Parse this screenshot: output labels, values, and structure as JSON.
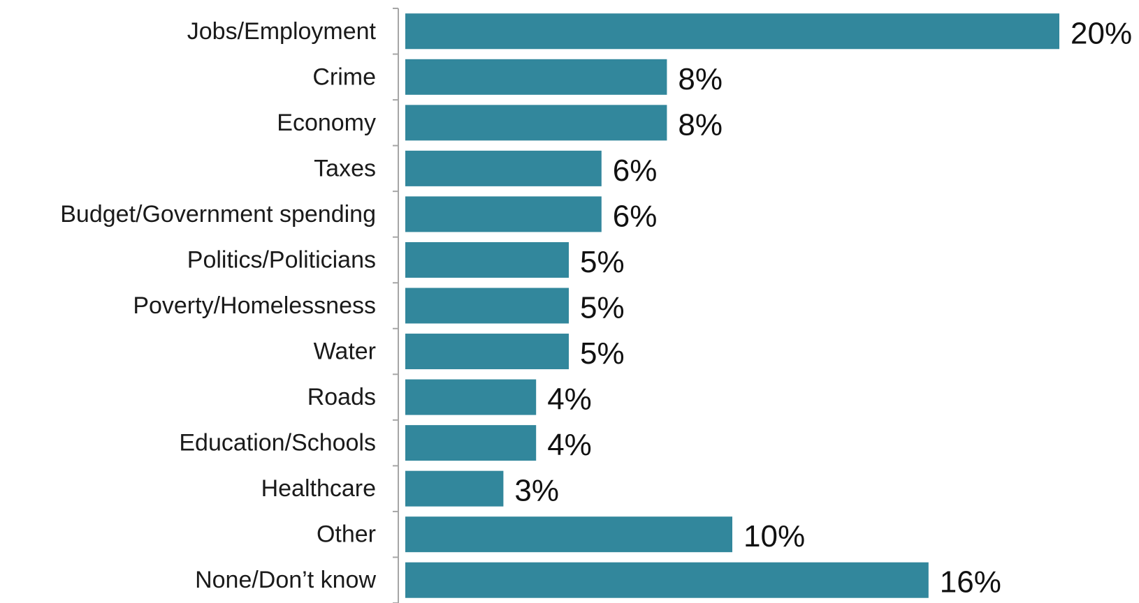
{
  "chart_data": {
    "type": "bar",
    "orientation": "horizontal",
    "categories": [
      "Jobs/Employment",
      "Crime",
      "Economy",
      "Taxes",
      "Budget/Government spending",
      "Politics/Politicians",
      "Poverty/Homelessness",
      "Water",
      "Roads",
      "Education/Schools",
      "Healthcare",
      "Other",
      "None/Don’t know"
    ],
    "values": [
      20,
      8,
      8,
      6,
      6,
      5,
      5,
      5,
      4,
      4,
      3,
      10,
      16
    ],
    "value_labels": [
      "20%",
      "8%",
      "8%",
      "6%",
      "6%",
      "5%",
      "5%",
      "5%",
      "4%",
      "4%",
      "3%",
      "10%",
      "16%"
    ],
    "value_unit": "%",
    "xlim": [
      0,
      20
    ],
    "grid": false,
    "legend": "none",
    "title": "",
    "xlabel": "",
    "ylabel": ""
  },
  "colors": {
    "bar": "#32879c",
    "axis": "#a6a6a6",
    "text": "#1a1a1a"
  }
}
